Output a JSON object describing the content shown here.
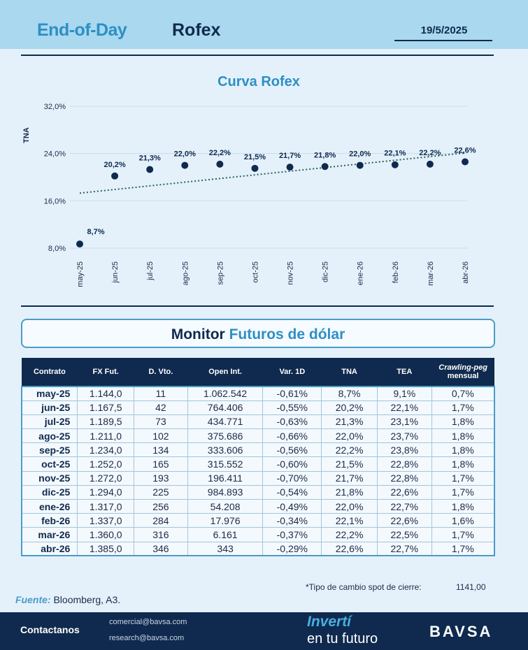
{
  "header": {
    "title_left": "End-of-Day",
    "title_right": "Rofex",
    "date": "19/5/2025"
  },
  "chart_data": {
    "type": "scatter",
    "title": "Curva Rofex",
    "ylabel": "TNA",
    "ylim": [
      8,
      32
    ],
    "yticks": [
      8,
      16,
      24,
      32
    ],
    "ytick_labels": [
      "8,0%",
      "16,0%",
      "24,0%",
      "32,0%"
    ],
    "categories": [
      "may-25",
      "jun-25",
      "jul-25",
      "ago-25",
      "sep-25",
      "oct-25",
      "nov-25",
      "dic-25",
      "ene-26",
      "feb-26",
      "mar-26",
      "abr-26"
    ],
    "values": [
      8.7,
      20.2,
      21.3,
      22.0,
      22.2,
      21.5,
      21.7,
      21.8,
      22.0,
      22.1,
      22.2,
      22.6
    ],
    "labels": [
      "8,7%",
      "20,2%",
      "21,3%",
      "22,0%",
      "22,2%",
      "21,5%",
      "21,7%",
      "21,8%",
      "22,0%",
      "22,1%",
      "22,2%",
      "22,6%"
    ],
    "trendline": {
      "style": "dotted",
      "start": 17.3,
      "end": 24.1
    },
    "grid": true,
    "point_color": "#0f2a4e",
    "trend_color": "#2c5f5a"
  },
  "monitor": {
    "title_a": "Monitor",
    "title_b": "Futuros de dólar"
  },
  "table": {
    "headers": [
      "Contrato",
      "FX Fut.",
      "D. Vto.",
      "Open Int.",
      "Var. 1D",
      "TNA",
      "TEA"
    ],
    "crawl_header_a": "Crawling-peg",
    "crawl_header_b": "mensual",
    "rows": [
      [
        "may-25",
        "1.144,0",
        "11",
        "1.062.542",
        "-0,61%",
        "8,7%",
        "9,1%",
        "0,7%"
      ],
      [
        "jun-25",
        "1.167,5",
        "42",
        "764.406",
        "-0,55%",
        "20,2%",
        "22,1%",
        "1,7%"
      ],
      [
        "jul-25",
        "1.189,5",
        "73",
        "434.771",
        "-0,63%",
        "21,3%",
        "23,1%",
        "1,8%"
      ],
      [
        "ago-25",
        "1.211,0",
        "102",
        "375.686",
        "-0,66%",
        "22,0%",
        "23,7%",
        "1,8%"
      ],
      [
        "sep-25",
        "1.234,0",
        "134",
        "333.606",
        "-0,56%",
        "22,2%",
        "23,8%",
        "1,8%"
      ],
      [
        "oct-25",
        "1.252,0",
        "165",
        "315.552",
        "-0,60%",
        "21,5%",
        "22,8%",
        "1,8%"
      ],
      [
        "nov-25",
        "1.272,0",
        "193",
        "196.411",
        "-0,70%",
        "21,7%",
        "22,8%",
        "1,7%"
      ],
      [
        "dic-25",
        "1.294,0",
        "225",
        "984.893",
        "-0,54%",
        "21,8%",
        "22,6%",
        "1,7%"
      ],
      [
        "ene-26",
        "1.317,0",
        "256",
        "54.208",
        "-0,49%",
        "22,0%",
        "22,7%",
        "1,8%"
      ],
      [
        "feb-26",
        "1.337,0",
        "284",
        "17.976",
        "-0,34%",
        "22,1%",
        "22,6%",
        "1,6%"
      ],
      [
        "mar-26",
        "1.360,0",
        "316",
        "6.161",
        "-0,37%",
        "22,2%",
        "22,5%",
        "1,7%"
      ],
      [
        "abr-26",
        "1.385,0",
        "346",
        "343",
        "-0,29%",
        "22,6%",
        "22,7%",
        "1,7%"
      ]
    ]
  },
  "notes": {
    "spot_label": "*Tipo de cambio spot de cierre:",
    "spot_value": "1141,00",
    "fuente_label": "Fuente:",
    "fuente_value": "Bloomberg, A3."
  },
  "footer": {
    "contact_label": "Contactanos",
    "email_1": "comercial@bavsa.com",
    "email_2": "research@bavsa.com",
    "slogan_a": "Invertí",
    "slogan_b": "en tu futuro",
    "brand": "BAVSA"
  }
}
